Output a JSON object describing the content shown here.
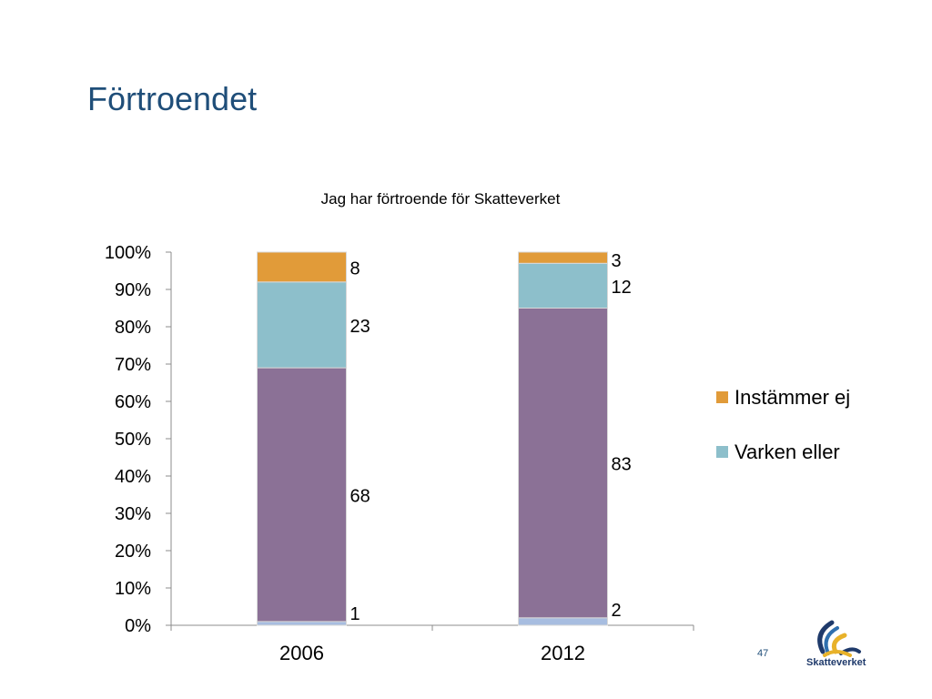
{
  "slide": {
    "title": "Förtroendet",
    "page_number": "47",
    "logo_text": "Skatteverket"
  },
  "colors": {
    "title": "#1f4e79",
    "instammer_ej": "#e19b39",
    "varken_eller": "#8dbfcb",
    "purple_series": "#8b7196",
    "light_blue_series": "#a7bde0"
  },
  "chart_data": {
    "type": "bar",
    "stacked": true,
    "title": "Jag har förtroende för Skatteverket",
    "categories": [
      "2006",
      "2012"
    ],
    "ylim": [
      0,
      100
    ],
    "y_ticks": [
      "0%",
      "10%",
      "20%",
      "30%",
      "40%",
      "50%",
      "60%",
      "70%",
      "80%",
      "90%",
      "100%"
    ],
    "grid": false,
    "legend_position": "right",
    "series": [
      {
        "values": [
          1,
          2
        ],
        "color": "#a7bde0"
      },
      {
        "values": [
          68,
          83
        ],
        "color": "#8b7196"
      },
      {
        "name": "Varken eller",
        "values": [
          23,
          12
        ],
        "color": "#8dbfcb"
      },
      {
        "name": "Instämmer ej",
        "values": [
          8,
          3
        ],
        "color": "#e19b39"
      }
    ],
    "legend": [
      {
        "label": "Instämmer ej",
        "color": "#e19b39"
      },
      {
        "label": "Varken eller",
        "color": "#8dbfcb"
      }
    ]
  }
}
